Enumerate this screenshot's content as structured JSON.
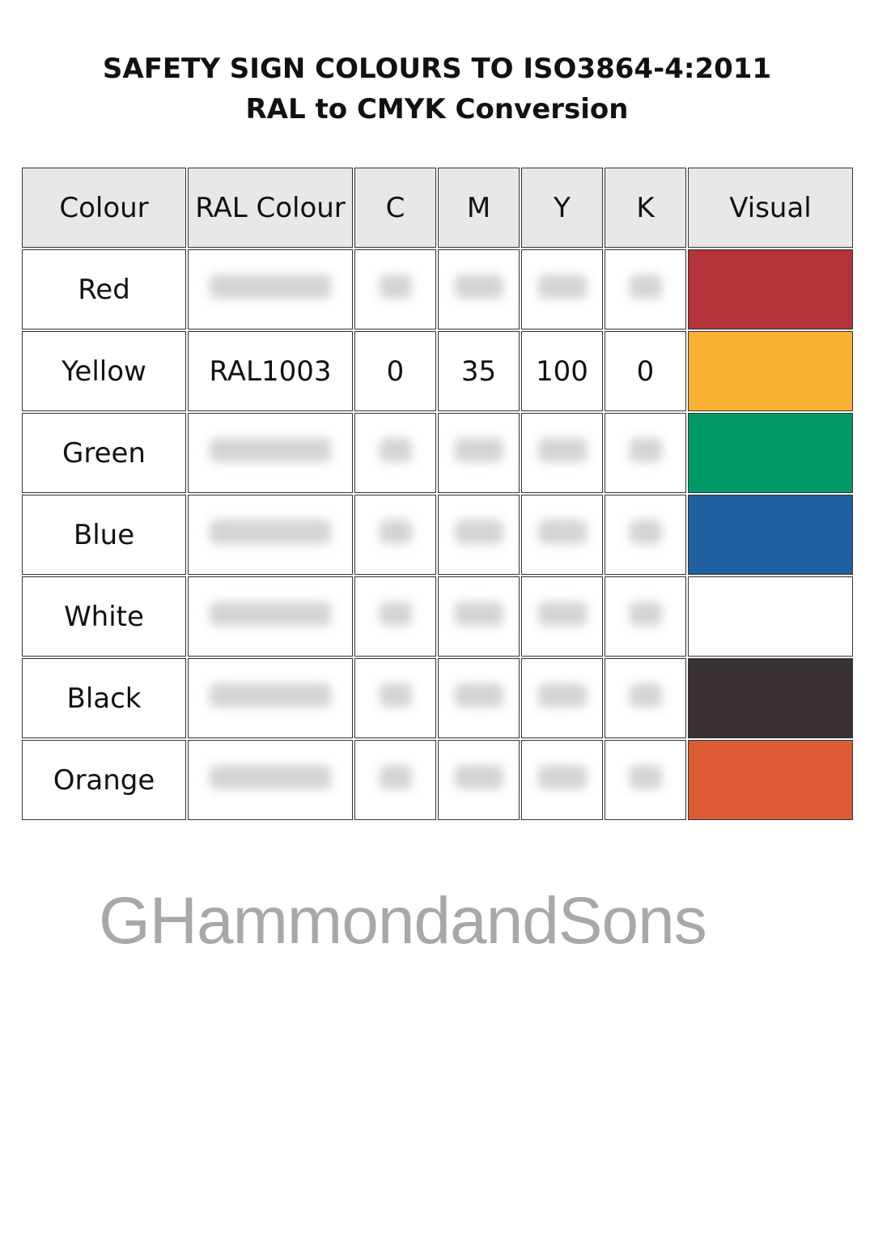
{
  "title": {
    "line1": "SAFETY SIGN COLOURS TO ISO3864-4:2011",
    "line2": "RAL to CMYK Conversion"
  },
  "table": {
    "headers": [
      "Colour",
      "RAL Colour",
      "C",
      "M",
      "Y",
      "K",
      "Visual"
    ],
    "rows": [
      {
        "colour": "Red",
        "ral": "",
        "c": "",
        "m": "",
        "y": "",
        "k": "",
        "swatch": "#b5333a",
        "blurred": true
      },
      {
        "colour": "Yellow",
        "ral": "RAL1003",
        "c": "0",
        "m": "35",
        "y": "100",
        "k": "0",
        "swatch": "#f8b133",
        "blurred": false
      },
      {
        "colour": "Green",
        "ral": "",
        "c": "",
        "m": "",
        "y": "",
        "k": "",
        "swatch": "#009966",
        "blurred": true
      },
      {
        "colour": "Blue",
        "ral": "",
        "c": "",
        "m": "",
        "y": "",
        "k": "",
        "swatch": "#1f5f9e",
        "blurred": true
      },
      {
        "colour": "White",
        "ral": "",
        "c": "",
        "m": "",
        "y": "",
        "k": "",
        "swatch": "#ffffff",
        "blurred": true
      },
      {
        "colour": "Black",
        "ral": "",
        "c": "",
        "m": "",
        "y": "",
        "k": "",
        "swatch": "#3a3132",
        "blurred": true
      },
      {
        "colour": "Orange",
        "ral": "",
        "c": "",
        "m": "",
        "y": "",
        "k": "",
        "swatch": "#dc5b35",
        "blurred": true
      }
    ]
  },
  "watermark": "GHammondandSons"
}
